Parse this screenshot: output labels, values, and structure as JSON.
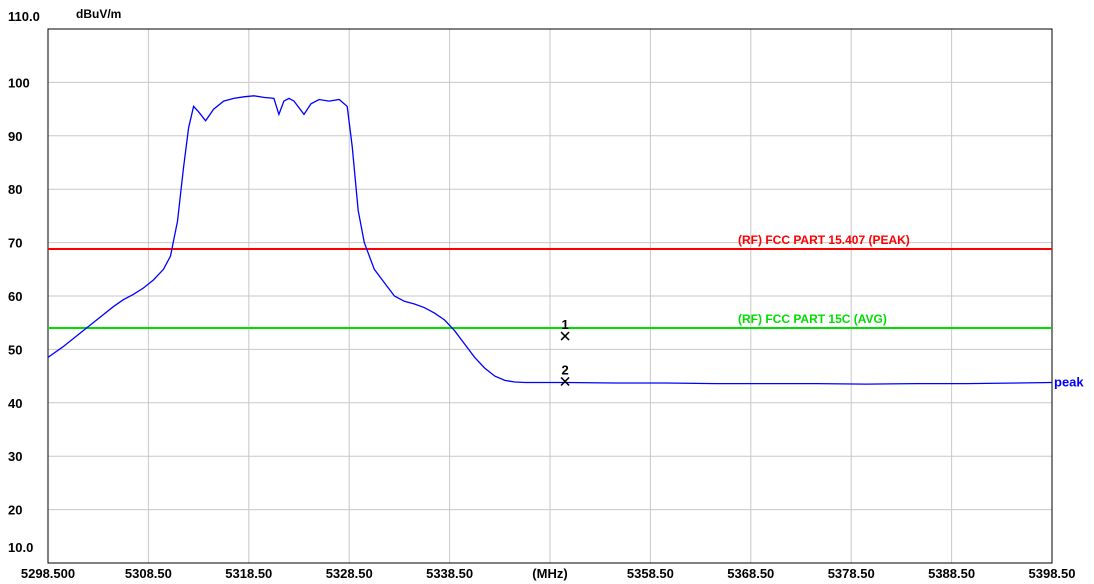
{
  "chart_data": {
    "type": "line",
    "ylabel": "dBuV/m",
    "xlabel": "(MHz)",
    "ylim": [
      10,
      110
    ],
    "xlim": [
      5298.5,
      5398.5
    ],
    "y_ticks": [
      "110.0",
      "100",
      "90",
      "80",
      "70",
      "60",
      "50",
      "40",
      "30",
      "20",
      "10.0"
    ],
    "x_ticks": [
      "5298.500",
      "5308.50",
      "5318.50",
      "5328.50",
      "5338.50",
      "(MHz)",
      "5358.50",
      "5368.50",
      "5378.50",
      "5388.50",
      "5398.50"
    ],
    "grid": true,
    "limit_lines": [
      {
        "name": "(RF) FCC PART 15.407  (PEAK)",
        "value": 68.8,
        "color": "#ff0000"
      },
      {
        "name": "(RF) FCC PART 15C (AVG)",
        "value": 54.0,
        "color": "#00dd00"
      }
    ],
    "markers": [
      {
        "label": "1",
        "x": 5350.0,
        "y": 52.5
      },
      {
        "label": "2",
        "x": 5350.0,
        "y": 44.0
      }
    ],
    "series": [
      {
        "name": "peak",
        "color": "#0000ff",
        "x": [
          5298.5,
          5300.0,
          5302.0,
          5304.0,
          5305.0,
          5306.0,
          5307.0,
          5308.0,
          5309.0,
          5310.0,
          5310.7,
          5311.4,
          5312.0,
          5312.5,
          5313.0,
          5313.5,
          5314.2,
          5315.0,
          5316.0,
          5317.0,
          5318.0,
          5319.0,
          5320.0,
          5321.0,
          5321.5,
          5322.0,
          5322.5,
          5323.0,
          5324.0,
          5324.7,
          5325.5,
          5326.5,
          5327.5,
          5328.3,
          5328.8,
          5329.4,
          5330.0,
          5330.5,
          5331.0,
          5332.0,
          5333.0,
          5334.0,
          5335.0,
          5336.0,
          5337.0,
          5338.0,
          5339.0,
          5340.0,
          5341.0,
          5342.0,
          5343.0,
          5344.0,
          5345.0,
          5346.0,
          5348.0,
          5350.0,
          5355.0,
          5360.0,
          5365.0,
          5370.0,
          5375.0,
          5380.0,
          5385.0,
          5390.0,
          5395.0,
          5398.5
        ],
        "values": [
          48.5,
          50.5,
          53.5,
          56.5,
          58.0,
          59.3,
          60.3,
          61.5,
          63.0,
          65.0,
          67.5,
          74.0,
          84.0,
          91.5,
          95.5,
          94.5,
          92.8,
          95.0,
          96.5,
          97.0,
          97.3,
          97.5,
          97.2,
          97.0,
          94.0,
          96.5,
          97.0,
          96.5,
          94.0,
          96.0,
          96.8,
          96.5,
          96.8,
          95.5,
          88.0,
          76.0,
          70.0,
          67.5,
          65.0,
          62.5,
          60.0,
          59.0,
          58.5,
          57.8,
          56.8,
          55.5,
          53.5,
          51.0,
          48.5,
          46.5,
          45.0,
          44.2,
          43.9,
          43.8,
          43.8,
          43.8,
          43.7,
          43.7,
          43.6,
          43.6,
          43.6,
          43.5,
          43.6,
          43.6,
          43.7,
          43.8
        ]
      }
    ]
  }
}
